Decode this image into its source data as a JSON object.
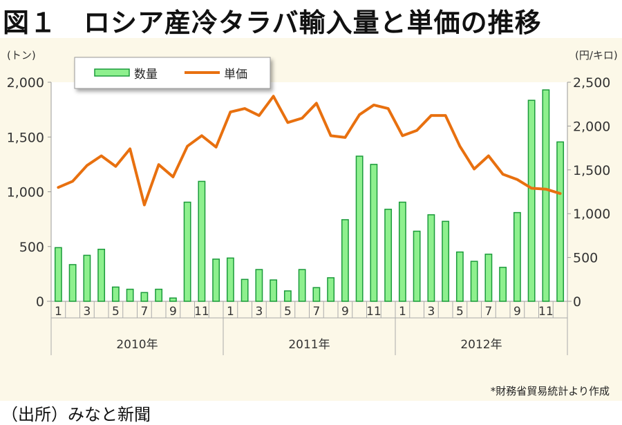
{
  "title": "図１　ロシア産冷タラバ輸入量と単価の推移",
  "source": "（出所）みなと新聞",
  "note": "*財務省貿易統計より作成",
  "chart_data": {
    "type": "bar+line",
    "left_axis": {
      "unit": "(トン)",
      "ylim": [
        0,
        2000
      ],
      "ticks": [
        "0",
        "500",
        "1,000",
        "1,500",
        "2,000"
      ]
    },
    "right_axis": {
      "unit": "(円/キロ)",
      "ylim": [
        0,
        2500
      ],
      "ticks": [
        "0",
        "500",
        "1,000",
        "1,500",
        "2,000",
        "2,500"
      ]
    },
    "month_ticks": [
      "1",
      "3",
      "5",
      "7",
      "9",
      "11"
    ],
    "years": [
      "2010年",
      "2011年",
      "2012年"
    ],
    "legend": {
      "position": "top-left",
      "entries": [
        "数量",
        "単価"
      ]
    },
    "colors": {
      "bar": "#8ef08e",
      "bar_edge": "#1a9a3a",
      "line": "#e8700f"
    },
    "series": [
      {
        "name": "数量",
        "type": "bar",
        "axis": "left",
        "values": [
          490,
          335,
          420,
          475,
          130,
          110,
          80,
          110,
          30,
          905,
          1095,
          385,
          395,
          200,
          290,
          195,
          95,
          290,
          125,
          215,
          745,
          1325,
          1250,
          840,
          905,
          640,
          790,
          730,
          450,
          365,
          430,
          310,
          810,
          1835,
          1930,
          1455
        ]
      },
      {
        "name": "単価",
        "type": "line",
        "axis": "right",
        "values": [
          1300,
          1370,
          1550,
          1660,
          1540,
          1740,
          1100,
          1560,
          1420,
          1770,
          1890,
          1760,
          2160,
          2200,
          2120,
          2340,
          2040,
          2090,
          2260,
          1890,
          1870,
          2130,
          2240,
          2200,
          1890,
          1950,
          2120,
          2120,
          1770,
          1510,
          1660,
          1450,
          1390,
          1290,
          1280,
          1230
        ]
      }
    ]
  }
}
